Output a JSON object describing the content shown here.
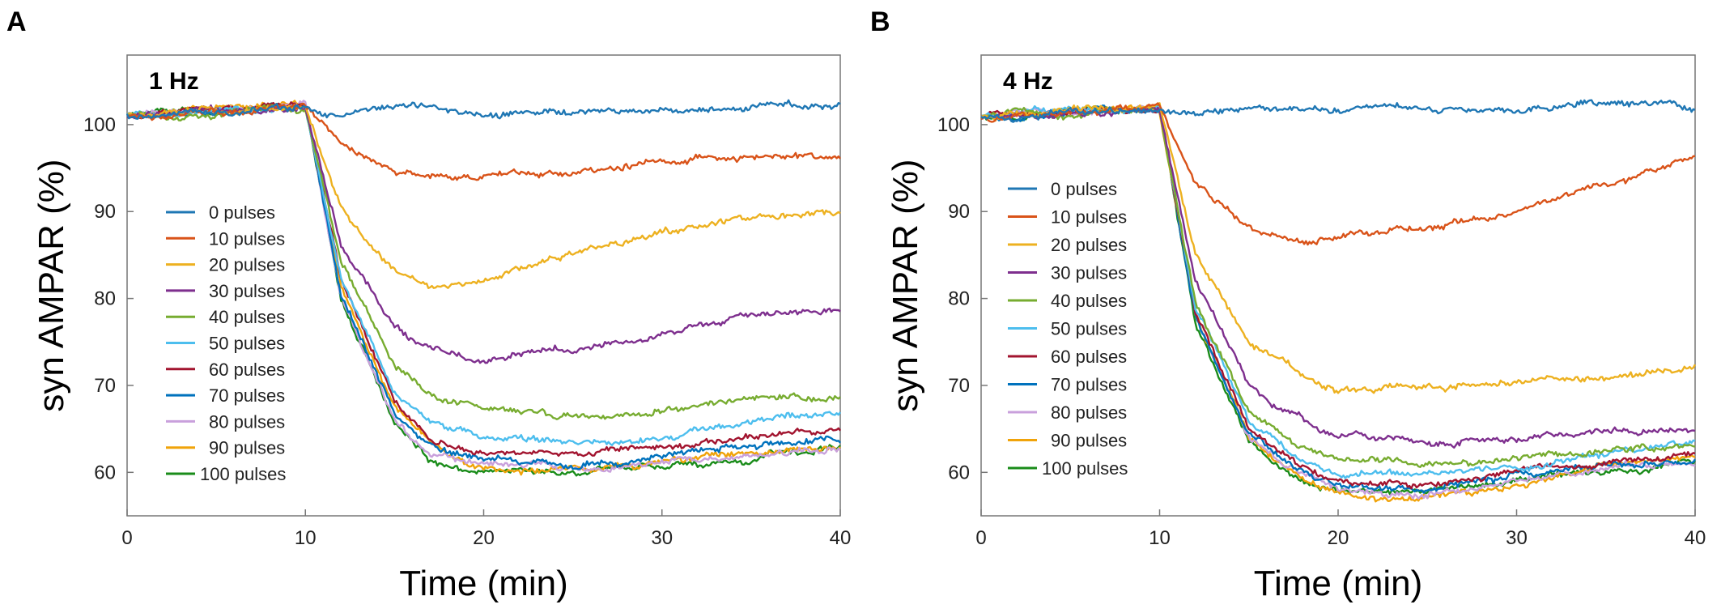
{
  "chart_data": [
    {
      "type": "line",
      "panel_label": "A",
      "title": "1 Hz",
      "xlabel": "Time (min)",
      "ylabel": "syn AMPAR (%)",
      "xlim": [
        0,
        40
      ],
      "ylim": [
        55,
        108
      ],
      "xticks": [
        0,
        10,
        20,
        30,
        40
      ],
      "yticks": [
        60,
        70,
        80,
        90,
        100
      ],
      "legend_position": "left",
      "series": [
        {
          "name": "0 pulses",
          "color": "#1f77b4",
          "x": [
            0,
            5,
            10,
            12,
            15,
            20,
            22,
            25,
            30,
            35,
            40
          ],
          "y": [
            101,
            101.5,
            102,
            101,
            102,
            101.5,
            101,
            101.5,
            101.5,
            102,
            102.5
          ]
        },
        {
          "name": "10 pulses",
          "color": "#d95319",
          "x": [
            0,
            5,
            10,
            12,
            15,
            17,
            20,
            25,
            30,
            35,
            40
          ],
          "y": [
            101,
            101.5,
            102,
            98,
            95,
            94,
            94,
            94.5,
            96,
            96.5,
            96
          ]
        },
        {
          "name": "20 pulses",
          "color": "#edb120",
          "x": [
            0,
            5,
            10,
            12,
            15,
            17,
            20,
            25,
            30,
            35,
            40
          ],
          "y": [
            101,
            101.5,
            102,
            90,
            83,
            81,
            82,
            85,
            88,
            89,
            90
          ]
        },
        {
          "name": "30 pulses",
          "color": "#7e2f8e",
          "x": [
            0,
            5,
            10,
            12,
            15,
            17,
            20,
            25,
            30,
            35,
            40
          ],
          "y": [
            101,
            101.5,
            102,
            86,
            77,
            74,
            73,
            74,
            76,
            78,
            78.5
          ]
        },
        {
          "name": "40 pulses",
          "color": "#77ac30",
          "x": [
            0,
            5,
            10,
            12,
            15,
            17,
            20,
            25,
            30,
            35,
            40
          ],
          "y": [
            101,
            101.5,
            102,
            84,
            72,
            69,
            67,
            66.5,
            67,
            69,
            68.5
          ]
        },
        {
          "name": "50 pulses",
          "color": "#4dbeee",
          "x": [
            0,
            5,
            10,
            12,
            15,
            17,
            20,
            25,
            30,
            35,
            40
          ],
          "y": [
            101,
            101.5,
            102,
            82,
            69,
            66,
            64,
            63.5,
            64,
            66,
            67
          ]
        },
        {
          "name": "60 pulses",
          "color": "#a2142f",
          "x": [
            0,
            5,
            10,
            12,
            15,
            17,
            20,
            25,
            30,
            35,
            40
          ],
          "y": [
            101,
            101.5,
            102,
            82,
            68,
            64,
            62,
            62,
            63,
            64,
            65
          ]
        },
        {
          "name": "70 pulses",
          "color": "#0072bd",
          "x": [
            0,
            5,
            10,
            12,
            15,
            17,
            20,
            25,
            30,
            35,
            40
          ],
          "y": [
            101,
            101.5,
            102,
            81,
            67,
            63,
            61.5,
            61,
            62,
            63,
            63.5
          ]
        },
        {
          "name": "80 pulses",
          "color": "#c9a0dc",
          "x": [
            0,
            5,
            10,
            12,
            15,
            17,
            20,
            25,
            30,
            35,
            40
          ],
          "y": [
            101,
            101.5,
            102,
            80,
            66,
            62,
            61,
            60.5,
            61,
            62,
            62.5
          ]
        },
        {
          "name": "90 pulses",
          "color": "#f0a30a",
          "x": [
            0,
            5,
            10,
            12,
            15,
            17,
            20,
            25,
            30,
            35,
            40
          ],
          "y": [
            101,
            101.5,
            102,
            81,
            67,
            63,
            60.5,
            60.5,
            61,
            62,
            63
          ]
        },
        {
          "name": "100 pulses",
          "color": "#1a8c1a",
          "x": [
            0,
            5,
            10,
            12,
            15,
            17,
            20,
            25,
            30,
            35,
            40
          ],
          "y": [
            101,
            101.5,
            102,
            80,
            66,
            61.5,
            60,
            60,
            60.5,
            61.5,
            63
          ]
        }
      ]
    },
    {
      "type": "line",
      "panel_label": "B",
      "title": "4 Hz",
      "xlabel": "Time (min)",
      "ylabel": "syn AMPAR (%)",
      "xlim": [
        0,
        40
      ],
      "ylim": [
        55,
        108
      ],
      "xticks": [
        0,
        10,
        20,
        30,
        40
      ],
      "yticks": [
        60,
        70,
        80,
        90,
        100
      ],
      "legend_position": "left",
      "series": [
        {
          "name": "0 pulses",
          "color": "#1f77b4",
          "x": [
            0,
            5,
            10,
            12,
            15,
            20,
            22,
            25,
            30,
            35,
            40
          ],
          "y": [
            101,
            101.5,
            102,
            101.5,
            102,
            102,
            102.5,
            102,
            102,
            102.5,
            101.5
          ]
        },
        {
          "name": "10 pulses",
          "color": "#d95319",
          "x": [
            0,
            5,
            10,
            12,
            15,
            18,
            20,
            25,
            30,
            35,
            40
          ],
          "y": [
            101,
            101.5,
            102,
            93,
            88,
            86.5,
            87,
            88,
            90,
            93,
            96
          ]
        },
        {
          "name": "20 pulses",
          "color": "#edb120",
          "x": [
            0,
            5,
            10,
            12,
            15,
            18,
            20,
            25,
            30,
            35,
            40
          ],
          "y": [
            101,
            101.5,
            102,
            85,
            75,
            71,
            69.5,
            70,
            70.5,
            71,
            72
          ]
        },
        {
          "name": "30 pulses",
          "color": "#7e2f8e",
          "x": [
            0,
            5,
            10,
            12,
            15,
            18,
            20,
            25,
            30,
            35,
            40
          ],
          "y": [
            101,
            101.5,
            102,
            82,
            70,
            66,
            64.5,
            63.5,
            64,
            65,
            65
          ]
        },
        {
          "name": "40 pulses",
          "color": "#77ac30",
          "x": [
            0,
            5,
            10,
            12,
            15,
            18,
            20,
            25,
            30,
            35,
            40
          ],
          "y": [
            101,
            101.5,
            102,
            80,
            67,
            63,
            61.5,
            61,
            61.5,
            62.5,
            63
          ]
        },
        {
          "name": "50 pulses",
          "color": "#4dbeee",
          "x": [
            0,
            5,
            10,
            12,
            15,
            18,
            20,
            25,
            30,
            35,
            40
          ],
          "y": [
            101,
            101.5,
            102,
            79,
            66,
            61.5,
            60,
            59.5,
            60.5,
            62,
            63.5
          ]
        },
        {
          "name": "60 pulses",
          "color": "#a2142f",
          "x": [
            0,
            5,
            10,
            12,
            15,
            18,
            20,
            25,
            30,
            35,
            40
          ],
          "y": [
            101,
            101.5,
            102,
            79,
            65,
            60.5,
            59,
            58.5,
            60,
            61,
            62
          ]
        },
        {
          "name": "70 pulses",
          "color": "#0072bd",
          "x": [
            0,
            5,
            10,
            12,
            15,
            18,
            20,
            25,
            30,
            35,
            40
          ],
          "y": [
            101,
            101.5,
            102,
            78,
            64.5,
            60,
            58.5,
            58,
            59.5,
            61,
            61.5
          ]
        },
        {
          "name": "80 pulses",
          "color": "#c9a0dc",
          "x": [
            0,
            5,
            10,
            12,
            15,
            18,
            20,
            25,
            30,
            35,
            40
          ],
          "y": [
            101,
            101.5,
            102,
            78,
            64,
            59.5,
            58,
            57.5,
            59,
            60.5,
            61
          ]
        },
        {
          "name": "90 pulses",
          "color": "#f0a30a",
          "x": [
            0,
            5,
            10,
            12,
            15,
            18,
            20,
            25,
            30,
            35,
            40
          ],
          "y": [
            101,
            101.5,
            102,
            78,
            64,
            59,
            57.5,
            57,
            58.5,
            60.5,
            62
          ]
        },
        {
          "name": "100 pulses",
          "color": "#1a8c1a",
          "x": [
            0,
            5,
            10,
            12,
            15,
            18,
            20,
            25,
            30,
            35,
            40
          ],
          "y": [
            101,
            101.5,
            102,
            77.5,
            63.5,
            59,
            58,
            58,
            59,
            60,
            61
          ]
        }
      ]
    }
  ]
}
